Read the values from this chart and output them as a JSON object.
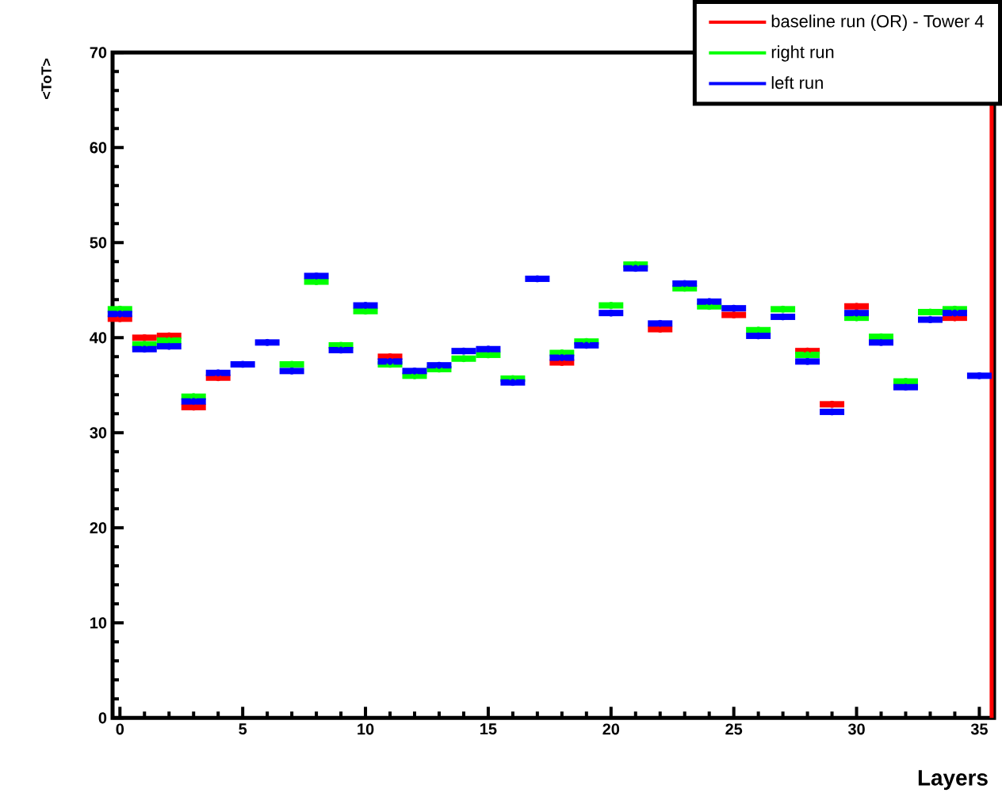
{
  "chart_data": {
    "type": "scatter",
    "xlabel": "Layers",
    "ylabel": "<ToT>",
    "x": [
      0,
      1,
      2,
      3,
      4,
      5,
      6,
      7,
      8,
      9,
      10,
      11,
      12,
      13,
      14,
      15,
      16,
      17,
      18,
      19,
      20,
      21,
      22,
      23,
      24,
      25,
      26,
      27,
      28,
      29,
      30,
      31,
      32,
      33,
      34,
      35
    ],
    "xlim": [
      -0.3,
      35.6
    ],
    "ylim": [
      0,
      70
    ],
    "xticks": [
      0,
      5,
      10,
      15,
      20,
      25,
      30,
      35
    ],
    "yticks": [
      0,
      10,
      20,
      30,
      40,
      50,
      60,
      70
    ],
    "legend": "top right",
    "ref_lines": [
      {
        "axis": "x",
        "value": 35.5,
        "color": "#ff0000"
      }
    ],
    "series": [
      {
        "name": "baseline run (OR) - Tower 4",
        "color": "#ff0000",
        "values": [
          42.0,
          40.0,
          40.2,
          32.7,
          35.8,
          null,
          null,
          null,
          null,
          null,
          null,
          38.0,
          null,
          null,
          null,
          null,
          null,
          null,
          37.4,
          null,
          null,
          null,
          40.9,
          null,
          null,
          42.4,
          null,
          null,
          38.6,
          33.0,
          43.3,
          null,
          null,
          null,
          42.1,
          null
        ],
        "xerrors": [
          0.5,
          0.5,
          0.5,
          0.5,
          0.5,
          null,
          null,
          null,
          null,
          null,
          null,
          0.5,
          null,
          null,
          null,
          null,
          null,
          null,
          0.5,
          null,
          null,
          null,
          0.5,
          null,
          null,
          0.5,
          null,
          null,
          0.5,
          0.5,
          0.5,
          null,
          null,
          null,
          0.5,
          null
        ]
      },
      {
        "name": "right run",
        "color": "#00ff00",
        "values": [
          43.0,
          39.3,
          39.7,
          33.8,
          null,
          null,
          null,
          37.2,
          45.9,
          39.2,
          42.8,
          37.2,
          36.0,
          36.7,
          37.8,
          38.2,
          35.7,
          null,
          38.4,
          39.6,
          43.4,
          47.7,
          null,
          45.2,
          43.3,
          null,
          40.8,
          43.0,
          38.2,
          null,
          42.1,
          40.1,
          35.4,
          42.7,
          43.0,
          null
        ],
        "xerrors": [
          0.5,
          0.5,
          0.5,
          0.5,
          null,
          null,
          null,
          0.5,
          0.5,
          0.5,
          0.5,
          0.5,
          0.5,
          0.5,
          0.5,
          0.5,
          0.5,
          null,
          0.5,
          0.5,
          0.5,
          0.5,
          null,
          0.5,
          0.5,
          null,
          0.5,
          0.5,
          0.5,
          null,
          0.5,
          0.5,
          0.5,
          0.5,
          0.5,
          null
        ]
      },
      {
        "name": "left run",
        "color": "#0000ff",
        "values": [
          42.5,
          38.8,
          39.1,
          33.3,
          36.3,
          37.2,
          39.5,
          36.5,
          46.5,
          38.7,
          43.4,
          37.5,
          36.5,
          37.1,
          38.6,
          38.8,
          35.3,
          46.2,
          37.9,
          39.2,
          42.6,
          47.3,
          41.5,
          45.7,
          43.8,
          43.1,
          40.2,
          42.2,
          37.5,
          32.2,
          42.6,
          39.5,
          34.8,
          41.9,
          42.6,
          36.0
        ],
        "xerrors": [
          0.5,
          0.5,
          0.5,
          0.5,
          0.5,
          0.5,
          0.5,
          0.5,
          0.5,
          0.5,
          0.5,
          0.5,
          0.5,
          0.5,
          0.5,
          0.5,
          0.5,
          0.5,
          0.5,
          0.5,
          0.5,
          0.5,
          0.5,
          0.5,
          0.5,
          0.5,
          0.5,
          0.5,
          0.5,
          0.5,
          0.5,
          0.5,
          0.5,
          0.5,
          0.5,
          0.5
        ]
      }
    ]
  }
}
